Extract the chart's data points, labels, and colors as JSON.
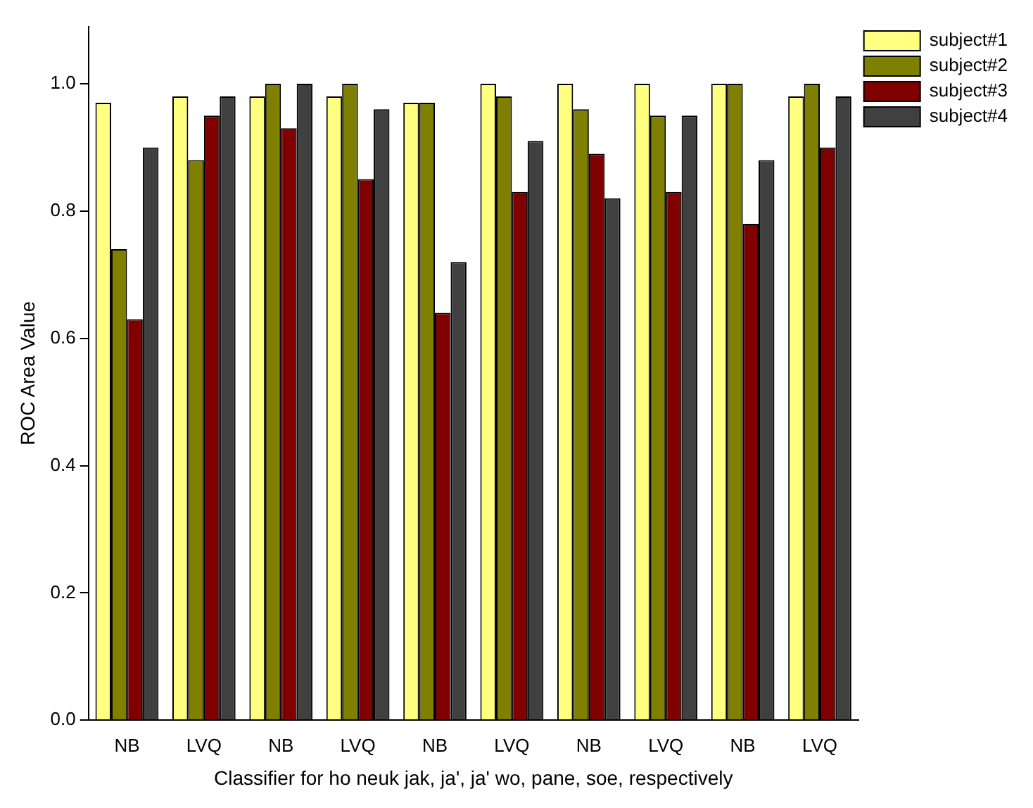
{
  "chart_data": {
    "type": "bar",
    "xlabel": "Classifier for ho neuk jak, ja', ja' wo, pane, soe, respectively",
    "ylabel": "ROC Area Value",
    "categories": [
      "NB",
      "LVQ",
      "NB",
      "LVQ",
      "NB",
      "LVQ",
      "NB",
      "LVQ",
      "NB",
      "LVQ"
    ],
    "series": [
      {
        "name": "subject#1",
        "color": "#ffff80",
        "values": [
          0.97,
          0.98,
          0.98,
          0.98,
          0.97,
          1.0,
          1.0,
          1.0,
          1.0,
          0.98
        ]
      },
      {
        "name": "subject#2",
        "color": "#808000",
        "values": [
          0.74,
          0.88,
          1.0,
          1.0,
          0.97,
          0.98,
          0.96,
          0.95,
          1.0,
          1.0
        ]
      },
      {
        "name": "subject#3",
        "color": "#800000",
        "values": [
          0.63,
          0.95,
          0.93,
          0.85,
          0.64,
          0.83,
          0.89,
          0.83,
          0.78,
          0.9
        ]
      },
      {
        "name": "subject#4",
        "color": "#404040",
        "values": [
          0.9,
          0.98,
          1.0,
          0.96,
          0.72,
          0.91,
          0.82,
          0.95,
          0.88,
          0.98
        ]
      }
    ],
    "ylim": [
      0,
      1.09
    ],
    "yticks": [
      {
        "value": 0,
        "label": "0.0"
      },
      {
        "value": 0.2,
        "label": "0.2"
      },
      {
        "value": 0.4,
        "label": "0.4"
      },
      {
        "value": 0.6,
        "label": "0.6"
      },
      {
        "value": 0.8,
        "label": "0.8"
      },
      {
        "value": 1.0,
        "label": "1.0"
      }
    ],
    "grid": false,
    "legend": "top right"
  }
}
